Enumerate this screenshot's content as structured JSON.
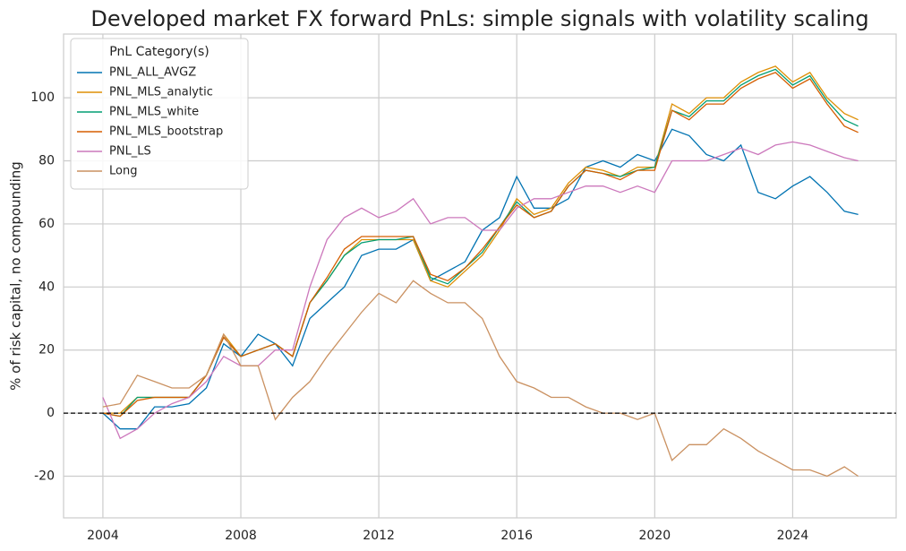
{
  "chart_data": {
    "type": "line",
    "title": "Developed market FX forward PnLs: simple signals with volatility scaling",
    "y_label": "% of risk capital, no compounding",
    "legend_title": "PnL Category(s)",
    "legend_position": "upper left",
    "grid": true,
    "reference_line": 0,
    "xlim": [
      2002.86,
      2027.0
    ],
    "ylim": [
      -33.2,
      120.2
    ],
    "xticks": [
      2004,
      2008,
      2012,
      2016,
      2020,
      2024
    ],
    "yticks": [
      -20,
      0,
      20,
      40,
      60,
      80,
      100
    ],
    "x": [
      2004.0,
      2004.5,
      2005.0,
      2005.5,
      2006.0,
      2006.5,
      2007.0,
      2007.5,
      2008.0,
      2008.5,
      2009.0,
      2009.5,
      2010.0,
      2010.5,
      2011.0,
      2011.5,
      2012.0,
      2012.5,
      2013.0,
      2013.5,
      2014.0,
      2014.5,
      2015.0,
      2015.5,
      2016.0,
      2016.5,
      2017.0,
      2017.5,
      2018.0,
      2018.5,
      2019.0,
      2019.5,
      2020.0,
      2020.5,
      2021.0,
      2021.5,
      2022.0,
      2022.5,
      2023.0,
      2023.5,
      2024.0,
      2024.5,
      2025.0,
      2025.5,
      2025.9
    ],
    "series": [
      {
        "name": "PNL_ALL_AVGZ",
        "color": "#0173b2",
        "values": [
          0,
          -5,
          -5,
          2,
          2,
          3,
          8,
          22,
          18,
          25,
          22,
          15,
          30,
          35,
          40,
          50,
          52,
          52,
          55,
          42,
          45,
          48,
          58,
          62,
          75,
          65,
          65,
          68,
          78,
          80,
          78,
          82,
          80,
          90,
          88,
          82,
          80,
          85,
          70,
          68,
          72,
          75,
          70,
          64,
          63
        ]
      },
      {
        "name": "PNL_MLS_analytic",
        "color": "#de8f05",
        "values": [
          0,
          0,
          5,
          5,
          5,
          5,
          12,
          25,
          18,
          20,
          22,
          18,
          35,
          42,
          50,
          55,
          55,
          55,
          55,
          42,
          40,
          45,
          50,
          58,
          68,
          63,
          65,
          73,
          78,
          77,
          75,
          78,
          78,
          98,
          95,
          100,
          100,
          105,
          108,
          110,
          105,
          108,
          100,
          95,
          93
        ]
      },
      {
        "name": "PNL_MLS_white",
        "color": "#029e73",
        "values": [
          0,
          -1,
          5,
          5,
          5,
          5,
          12,
          24,
          18,
          20,
          22,
          18,
          35,
          42,
          50,
          54,
          55,
          55,
          56,
          43,
          41,
          46,
          51,
          59,
          67,
          62,
          64,
          72,
          77,
          76,
          75,
          77,
          78,
          96,
          94,
          99,
          99,
          104,
          107,
          109,
          104,
          107,
          99,
          93,
          91
        ]
      },
      {
        "name": "PNL_MLS_bootstrap",
        "color": "#d55e00",
        "values": [
          0,
          -1,
          4,
          5,
          5,
          5,
          12,
          24,
          18,
          20,
          22,
          18,
          35,
          43,
          52,
          56,
          56,
          56,
          56,
          44,
          42,
          46,
          52,
          59,
          66,
          62,
          64,
          72,
          77,
          76,
          74,
          77,
          77,
          96,
          93,
          98,
          98,
          103,
          106,
          108,
          103,
          106,
          98,
          91,
          89
        ]
      },
      {
        "name": "PNL_LS",
        "color": "#cc78bc",
        "values": [
          5,
          -8,
          -5,
          0,
          3,
          5,
          10,
          18,
          15,
          15,
          20,
          20,
          40,
          55,
          62,
          65,
          62,
          64,
          68,
          60,
          62,
          62,
          58,
          58,
          65,
          68,
          68,
          70,
          72,
          72,
          70,
          72,
          70,
          80,
          80,
          80,
          82,
          84,
          82,
          85,
          86,
          85,
          83,
          81,
          80
        ]
      },
      {
        "name": "Long",
        "color": "#ca9161",
        "values": [
          2,
          3,
          12,
          10,
          8,
          8,
          12,
          25,
          15,
          15,
          -2,
          5,
          10,
          18,
          25,
          32,
          38,
          35,
          42,
          38,
          35,
          35,
          30,
          18,
          10,
          8,
          5,
          5,
          2,
          0,
          0,
          -2,
          0,
          -15,
          -10,
          -10,
          -5,
          -8,
          -12,
          -15,
          -18,
          -18,
          -20,
          -17,
          -20
        ]
      }
    ]
  }
}
